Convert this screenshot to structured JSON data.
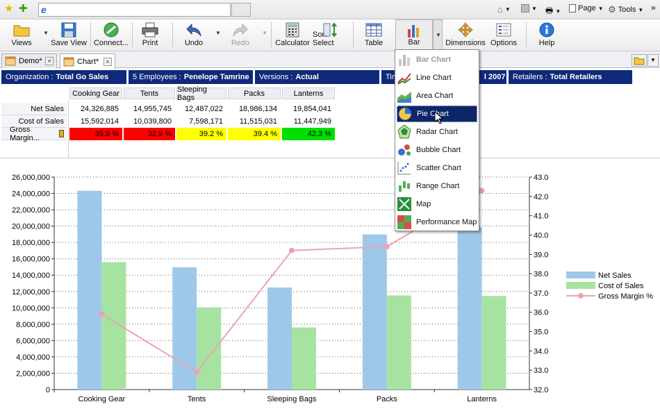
{
  "browser": {
    "page_label": "Page",
    "tools_label": "Tools"
  },
  "toolbar": {
    "views": "Views",
    "save_view": "Save View",
    "connect": "Connect...",
    "print": "Print",
    "undo": "Undo",
    "redo": "Redo",
    "calculator": "Calculator",
    "sort_select": "Sort Select",
    "table": "Table",
    "bar": "Bar",
    "dimensions": "Dimensions",
    "options": "Options",
    "help": "Help"
  },
  "tabs": [
    {
      "label": "Demo*"
    },
    {
      "label": "Chart*"
    }
  ],
  "filters": [
    {
      "name": "Organization :",
      "value": "Total Go Sales"
    },
    {
      "name": "5 Employees :",
      "value": "Penelope Tamrine"
    },
    {
      "name": "Versions :",
      "value": "Actual"
    },
    {
      "name": "Tim",
      "value": ""
    },
    {
      "name": "",
      "value": "l 2007"
    },
    {
      "name": "Retailers :",
      "value": "Total Retailers"
    }
  ],
  "grid": {
    "columns": [
      "Cooking Gear",
      "Tents",
      "Sleeping Bags",
      "Packs",
      "Lanterns"
    ],
    "rows": [
      {
        "label": "Net Sales",
        "values": [
          "24,326,885",
          "14,955,745",
          "12,487,022",
          "18,986,134",
          "19,854,041"
        ]
      },
      {
        "label": "Cost of Sales",
        "values": [
          "15,592,014",
          "10,039,800",
          "7,598,171",
          "11,515,031",
          "11,447,949"
        ]
      },
      {
        "label": "Gross Margin...",
        "values": [
          "35.9 %",
          "32.9 %",
          "39.2 %",
          "39.4 %",
          "42.3 %"
        ],
        "colors": [
          "#ff0000",
          "#ff0000",
          "#ffff00",
          "#ffff00",
          "#00e000"
        ]
      }
    ]
  },
  "menu": {
    "items": [
      {
        "label": "Bar Chart",
        "icon": "bar-chart-icon",
        "disabled": true
      },
      {
        "label": "Line Chart",
        "icon": "line-chart-icon"
      },
      {
        "label": "Area Chart",
        "icon": "area-chart-icon"
      },
      {
        "label": "Pie Chart",
        "icon": "pie-chart-icon",
        "highlighted": true
      },
      {
        "label": "Radar Chart",
        "icon": "radar-chart-icon"
      },
      {
        "label": "Bubble Chart",
        "icon": "bubble-chart-icon"
      },
      {
        "label": "Scatter Chart",
        "icon": "scatter-chart-icon"
      },
      {
        "label": "Range Chart",
        "icon": "range-chart-icon"
      },
      {
        "label": "Map",
        "icon": "map-icon"
      },
      {
        "label": "Performance Map",
        "icon": "performance-map-icon"
      }
    ]
  },
  "chart_data": {
    "type": "bar",
    "categories": [
      "Cooking Gear",
      "Tents",
      "Sleeping Bags",
      "Packs",
      "Lanterns"
    ],
    "series": [
      {
        "name": "Net Sales",
        "kind": "bar",
        "axis": "left",
        "color": "#9ec8ea",
        "values": [
          24326885,
          14955745,
          12487022,
          18986134,
          19854041
        ]
      },
      {
        "name": "Cost of Sales",
        "kind": "bar",
        "axis": "left",
        "color": "#a7e3a0",
        "values": [
          15592014,
          10039800,
          7598171,
          11515031,
          11447949
        ]
      },
      {
        "name": "Gross Margin %",
        "kind": "line",
        "axis": "right",
        "color": "#eaa3b4",
        "values": [
          35.9,
          32.9,
          39.2,
          39.4,
          42.3
        ]
      }
    ],
    "y_left": {
      "min": 0,
      "max": 26000000,
      "step": 2000000,
      "ticks": [
        "0",
        "2,000,000",
        "4,000,000",
        "6,000,000",
        "8,000,000",
        "10,000,000",
        "12,000,000",
        "14,000,000",
        "16,000,000",
        "18,000,000",
        "20,000,000",
        "22,000,000",
        "24,000,000",
        "26,000,000"
      ]
    },
    "y_right": {
      "min": 32.0,
      "max": 43.0,
      "step": 1.0,
      "ticks": [
        "32.0",
        "33.0",
        "34.0",
        "35.0",
        "36.0",
        "37.0",
        "38.0",
        "39.0",
        "40.0",
        "41.0",
        "42.0",
        "43.0"
      ]
    },
    "grid": true,
    "legend": "right"
  }
}
